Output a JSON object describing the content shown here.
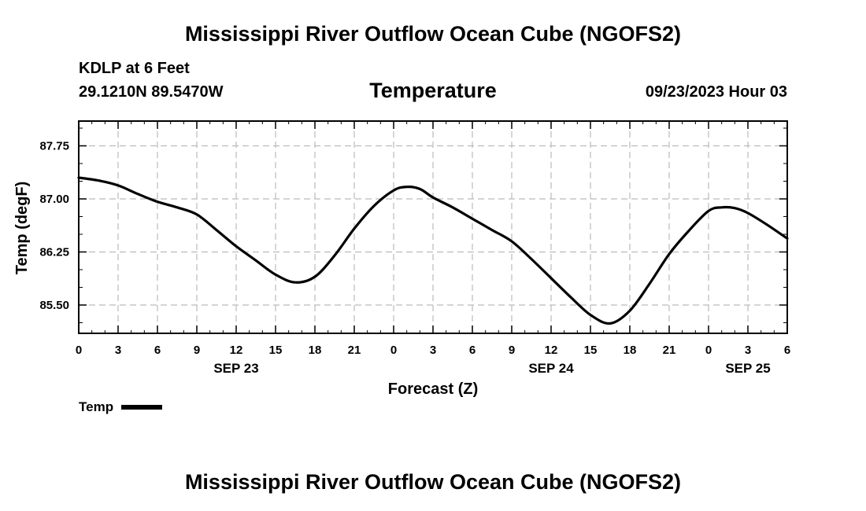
{
  "header": {
    "title": "Mississippi River Outflow Ocean Cube (NGOFS2)",
    "station": "KDLP at 6 Feet",
    "coordinates": "29.1210N  89.5470W",
    "subtitle": "Temperature",
    "timestamp": "09/23/2023 Hour 03"
  },
  "footer": {
    "title": "Mississippi River Outflow Ocean Cube (NGOFS2)"
  },
  "legend": {
    "label": "Temp"
  },
  "chart_data": {
    "type": "line",
    "title": "Temperature",
    "xlabel": "Forecast (Z)",
    "ylabel": "Temp (degF)",
    "xlim": [
      0,
      54
    ],
    "ylim": [
      85.1,
      88.1
    ],
    "grid": true,
    "x_tick_values": [
      0,
      3,
      6,
      9,
      12,
      15,
      18,
      21,
      24,
      27,
      30,
      33,
      36,
      39,
      42,
      45,
      48,
      51,
      54
    ],
    "x_tick_labels": [
      "0",
      "3",
      "6",
      "9",
      "12",
      "15",
      "18",
      "21",
      "0",
      "3",
      "6",
      "9",
      "12",
      "15",
      "18",
      "21",
      "0",
      "3",
      "6"
    ],
    "y_tick_values": [
      85.5,
      86.25,
      87.0,
      87.75
    ],
    "y_tick_labels": [
      "85.50",
      "86.25",
      "87.00",
      "87.75"
    ],
    "date_labels": [
      {
        "x": 12,
        "label": "SEP 23"
      },
      {
        "x": 36,
        "label": "SEP 24"
      },
      {
        "x": 51,
        "label": "SEP 25"
      }
    ],
    "series": [
      {
        "name": "Temp",
        "color": "#000000",
        "x": [
          0,
          1.5,
          3,
          4.5,
          6,
          7.5,
          9,
          10.5,
          12,
          13.5,
          15,
          16.5,
          18,
          19.5,
          21,
          22.5,
          24,
          25,
          26,
          27,
          28.5,
          30,
          31.5,
          33,
          34.5,
          36,
          37.5,
          39,
          40.5,
          42,
          43.5,
          45,
          46.5,
          48,
          49,
          50,
          51,
          52.5,
          54
        ],
        "y": [
          87.3,
          87.26,
          87.19,
          87.07,
          86.96,
          86.88,
          86.78,
          86.56,
          86.33,
          86.13,
          85.93,
          85.82,
          85.9,
          86.2,
          86.58,
          86.9,
          87.12,
          87.17,
          87.14,
          87.02,
          86.88,
          86.72,
          86.56,
          86.4,
          86.15,
          85.88,
          85.61,
          85.36,
          85.24,
          85.42,
          85.8,
          86.22,
          86.55,
          86.83,
          86.88,
          86.87,
          86.8,
          86.63,
          86.44
        ]
      }
    ]
  }
}
